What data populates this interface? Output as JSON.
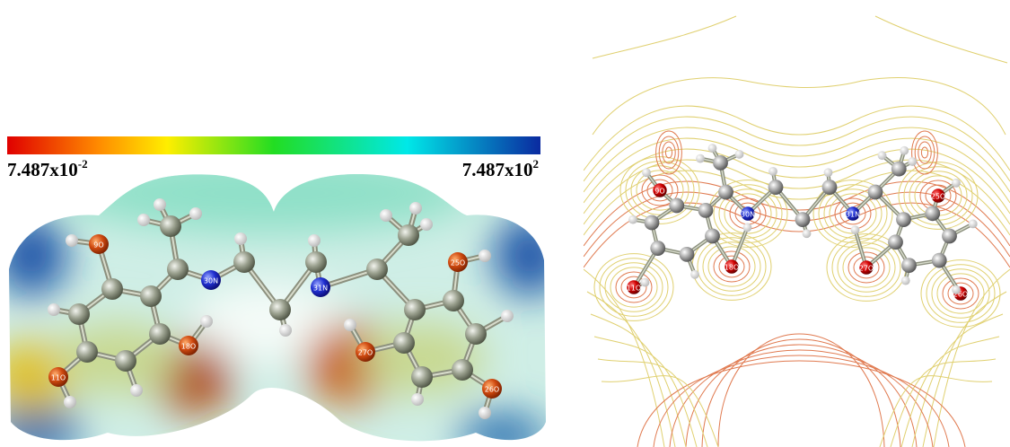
{
  "colorbar": {
    "min": {
      "mantissa": "7.487x10",
      "exponent": "-2"
    },
    "max": {
      "mantissa": "7.487x10",
      "exponent": "2"
    }
  },
  "left_panel": {
    "atom_labels": [
      "9O",
      "30N",
      "31N",
      "25O",
      "18O",
      "27O",
      "11O",
      "26O"
    ]
  },
  "right_panel": {
    "atom_labels": [
      "9O",
      "30N",
      "31N",
      "25O",
      "18O",
      "27O",
      "11O",
      "26O"
    ]
  }
}
